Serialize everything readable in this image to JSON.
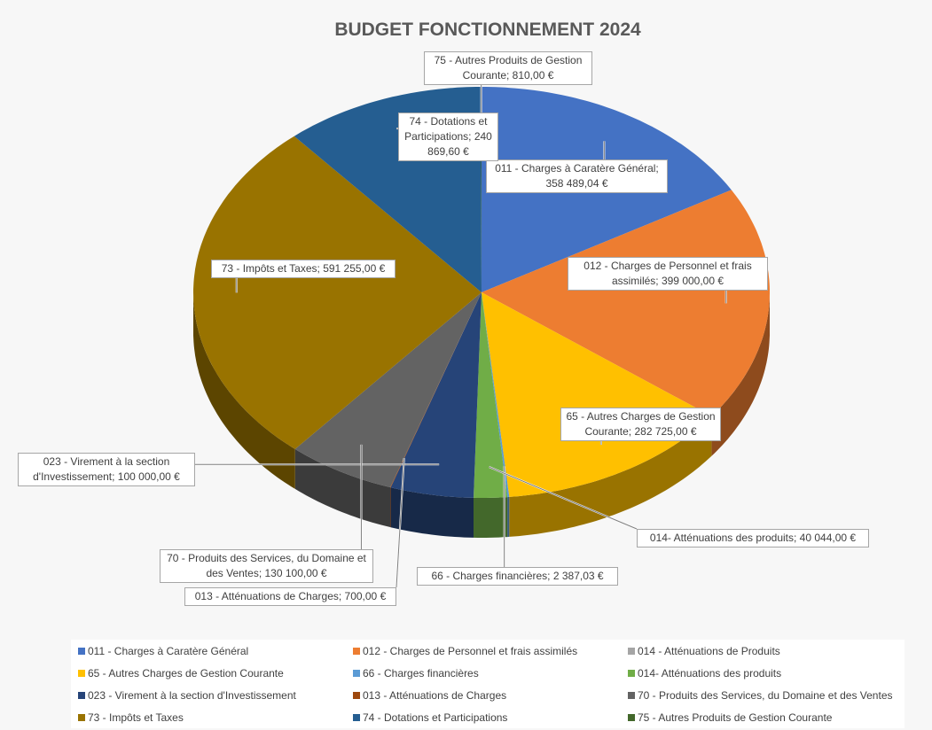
{
  "chart_data": {
    "type": "pie",
    "title": "BUDGET FONCTIONNEMENT 2024",
    "categories": [
      "011 - Charges à Caratère Général",
      "012 - Charges de Personnel et frais assimilés",
      "014 - Atténuations de Produits",
      "65 - Autres Charges de Gestion Courante",
      "66 - Charges financières",
      "014- Atténuations des produits",
      "023 - Virement à la section d'Investissement",
      "013 - Atténuations de Charges",
      "70 - Produits des Services, du Domaine et des Ventes",
      "73 - Impôts et Taxes",
      "74 - Dotations et Participations",
      "75 - Autres Produits de Gestion Courante"
    ],
    "values": [
      358489.04,
      399000,
      0,
      282725,
      2387.03,
      40044,
      100000,
      700,
      130100,
      591255,
      240869.6,
      810
    ],
    "value_labels": [
      "011 - Charges à Caratère Général; 358 489,04 €",
      "012 - Charges de Personnel et frais assimilés; 399 000,00 €",
      null,
      "65 - Autres Charges de Gestion Courante; 282 725,00 €",
      "66 - Charges financières; 2 387,03 €",
      "014- Atténuations des produits; 40 044,00 €",
      "023 - Virement à la section d'Investissement; 100 000,00 €",
      "013 - Atténuations de Charges; 700,00 €",
      "70 - Produits des Services, du Domaine et des Ventes; 130 100,00 €",
      "73 - Impôts et Taxes; 591 255,00 €",
      "74 - Dotations et Participations; 240 869,60 €",
      "75 - Autres Produits de Gestion Courante; 810,00 €"
    ],
    "colors": [
      "#4472c4",
      "#ed7d31",
      "#a5a5a5",
      "#ffc000",
      "#5b9bd5",
      "#70ad47",
      "#264478",
      "#9e480e",
      "#636363",
      "#997300",
      "#255e91",
      "#43682b"
    ],
    "legend": "bottom"
  }
}
